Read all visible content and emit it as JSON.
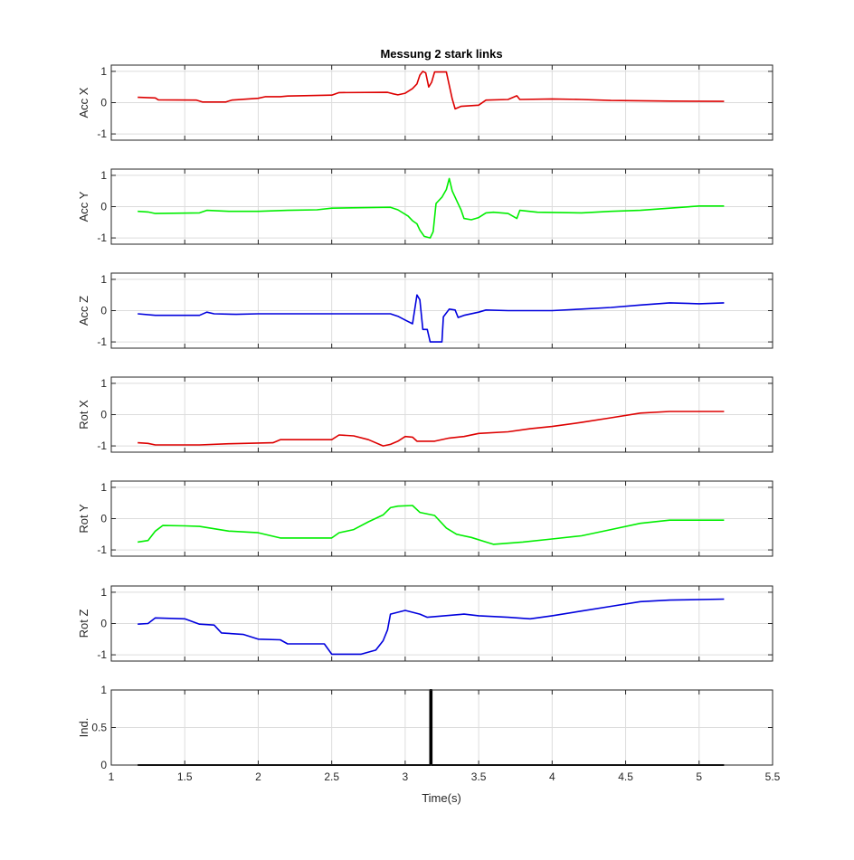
{
  "chart_data": {
    "type": "line",
    "title": "Messung 2 stark links",
    "xlabel": "Time(s)",
    "xlim": [
      1,
      5.5
    ],
    "xticks": [
      1,
      1.5,
      2,
      2.5,
      3,
      3.5,
      4,
      4.5,
      5,
      5.5
    ],
    "xtick_labels": [
      "1",
      "1.5",
      "2",
      "2.5",
      "3",
      "3.5",
      "4",
      "4.5",
      "5",
      "5.5"
    ],
    "grid": true,
    "panels": [
      {
        "ylabel": "Acc X",
        "ylim": [
          -1.2,
          1.2
        ],
        "yticks": [
          -1,
          0,
          1
        ],
        "ytick_labels": [
          "-1",
          "0",
          "1"
        ],
        "color": "#dd0000",
        "points": [
          [
            1.18,
            0.17
          ],
          [
            1.3,
            0.15
          ],
          [
            1.32,
            0.09
          ],
          [
            1.58,
            0.08
          ],
          [
            1.62,
            0.02
          ],
          [
            1.78,
            0.02
          ],
          [
            1.82,
            0.08
          ],
          [
            2.0,
            0.14
          ],
          [
            2.05,
            0.19
          ],
          [
            2.15,
            0.19
          ],
          [
            2.2,
            0.21
          ],
          [
            2.5,
            0.24
          ],
          [
            2.55,
            0.32
          ],
          [
            2.88,
            0.33
          ],
          [
            2.92,
            0.28
          ],
          [
            2.95,
            0.25
          ],
          [
            3.0,
            0.3
          ],
          [
            3.05,
            0.45
          ],
          [
            3.08,
            0.6
          ],
          [
            3.1,
            0.88
          ],
          [
            3.12,
            1.0
          ],
          [
            3.14,
            0.95
          ],
          [
            3.16,
            0.5
          ],
          [
            3.18,
            0.65
          ],
          [
            3.2,
            0.98
          ],
          [
            3.28,
            0.98
          ],
          [
            3.32,
            0.12
          ],
          [
            3.34,
            -0.2
          ],
          [
            3.38,
            -0.12
          ],
          [
            3.5,
            -0.08
          ],
          [
            3.55,
            0.08
          ],
          [
            3.7,
            0.1
          ],
          [
            3.76,
            0.22
          ],
          [
            3.78,
            0.1
          ],
          [
            4.0,
            0.12
          ],
          [
            4.2,
            0.1
          ],
          [
            4.4,
            0.07
          ],
          [
            4.6,
            0.06
          ],
          [
            4.8,
            0.05
          ],
          [
            5.17,
            0.04
          ]
        ]
      },
      {
        "ylabel": "Acc Y",
        "ylim": [
          -1.2,
          1.2
        ],
        "yticks": [
          -1,
          0,
          1
        ],
        "ytick_labels": [
          "-1",
          "0",
          "1"
        ],
        "color": "#00ee00",
        "points": [
          [
            1.18,
            -0.15
          ],
          [
            1.25,
            -0.17
          ],
          [
            1.3,
            -0.22
          ],
          [
            1.6,
            -0.2
          ],
          [
            1.65,
            -0.12
          ],
          [
            1.8,
            -0.15
          ],
          [
            2.0,
            -0.15
          ],
          [
            2.2,
            -0.12
          ],
          [
            2.4,
            -0.1
          ],
          [
            2.5,
            -0.05
          ],
          [
            2.9,
            -0.02
          ],
          [
            2.95,
            -0.1
          ],
          [
            3.02,
            -0.3
          ],
          [
            3.05,
            -0.45
          ],
          [
            3.08,
            -0.55
          ],
          [
            3.1,
            -0.75
          ],
          [
            3.13,
            -0.95
          ],
          [
            3.17,
            -1.0
          ],
          [
            3.19,
            -0.8
          ],
          [
            3.21,
            0.1
          ],
          [
            3.25,
            0.3
          ],
          [
            3.28,
            0.55
          ],
          [
            3.3,
            0.9
          ],
          [
            3.32,
            0.5
          ],
          [
            3.35,
            0.2
          ],
          [
            3.38,
            -0.1
          ],
          [
            3.4,
            -0.38
          ],
          [
            3.45,
            -0.42
          ],
          [
            3.5,
            -0.35
          ],
          [
            3.55,
            -0.2
          ],
          [
            3.6,
            -0.18
          ],
          [
            3.7,
            -0.22
          ],
          [
            3.76,
            -0.38
          ],
          [
            3.78,
            -0.12
          ],
          [
            3.9,
            -0.18
          ],
          [
            4.2,
            -0.2
          ],
          [
            4.4,
            -0.15
          ],
          [
            4.6,
            -0.12
          ],
          [
            4.8,
            -0.05
          ],
          [
            5.0,
            0.02
          ],
          [
            5.17,
            0.02
          ]
        ]
      },
      {
        "ylabel": "Acc Z",
        "ylim": [
          -1.2,
          1.2
        ],
        "yticks": [
          -1,
          0,
          1
        ],
        "ytick_labels": [
          "-1",
          "0",
          "1"
        ],
        "color": "#0000dd",
        "points": [
          [
            1.18,
            -0.1
          ],
          [
            1.3,
            -0.15
          ],
          [
            1.6,
            -0.15
          ],
          [
            1.65,
            -0.05
          ],
          [
            1.7,
            -0.1
          ],
          [
            1.85,
            -0.12
          ],
          [
            2.0,
            -0.1
          ],
          [
            2.2,
            -0.1
          ],
          [
            2.5,
            -0.1
          ],
          [
            2.9,
            -0.1
          ],
          [
            2.95,
            -0.18
          ],
          [
            3.0,
            -0.3
          ],
          [
            3.05,
            -0.42
          ],
          [
            3.08,
            0.5
          ],
          [
            3.1,
            0.35
          ],
          [
            3.12,
            -0.6
          ],
          [
            3.15,
            -0.6
          ],
          [
            3.17,
            -1.0
          ],
          [
            3.25,
            -1.0
          ],
          [
            3.26,
            -0.2
          ],
          [
            3.3,
            0.05
          ],
          [
            3.34,
            0.02
          ],
          [
            3.36,
            -0.22
          ],
          [
            3.4,
            -0.15
          ],
          [
            3.5,
            -0.05
          ],
          [
            3.55,
            0.02
          ],
          [
            3.7,
            0.0
          ],
          [
            4.0,
            0.0
          ],
          [
            4.2,
            0.05
          ],
          [
            4.4,
            0.1
          ],
          [
            4.6,
            0.18
          ],
          [
            4.8,
            0.25
          ],
          [
            5.0,
            0.22
          ],
          [
            5.17,
            0.25
          ]
        ]
      },
      {
        "ylabel": "Rot X",
        "ylim": [
          -1.2,
          1.2
        ],
        "yticks": [
          -1,
          0,
          1
        ],
        "ytick_labels": [
          "-1",
          "0",
          "1"
        ],
        "color": "#dd0000",
        "points": [
          [
            1.18,
            -0.9
          ],
          [
            1.25,
            -0.92
          ],
          [
            1.3,
            -0.97
          ],
          [
            1.6,
            -0.97
          ],
          [
            1.8,
            -0.93
          ],
          [
            2.1,
            -0.9
          ],
          [
            2.15,
            -0.8
          ],
          [
            2.5,
            -0.8
          ],
          [
            2.55,
            -0.65
          ],
          [
            2.65,
            -0.68
          ],
          [
            2.75,
            -0.8
          ],
          [
            2.85,
            -1.0
          ],
          [
            2.9,
            -0.95
          ],
          [
            2.95,
            -0.85
          ],
          [
            3.0,
            -0.7
          ],
          [
            3.05,
            -0.72
          ],
          [
            3.08,
            -0.85
          ],
          [
            3.2,
            -0.85
          ],
          [
            3.3,
            -0.75
          ],
          [
            3.4,
            -0.7
          ],
          [
            3.5,
            -0.6
          ],
          [
            3.7,
            -0.55
          ],
          [
            3.85,
            -0.45
          ],
          [
            4.0,
            -0.38
          ],
          [
            4.2,
            -0.25
          ],
          [
            4.4,
            -0.1
          ],
          [
            4.6,
            0.05
          ],
          [
            4.8,
            0.1
          ],
          [
            5.17,
            0.1
          ]
        ]
      },
      {
        "ylabel": "Rot Y",
        "ylim": [
          -1.2,
          1.2
        ],
        "yticks": [
          -1,
          0,
          1
        ],
        "ytick_labels": [
          "-1",
          "0",
          "1"
        ],
        "color": "#00ee00",
        "points": [
          [
            1.18,
            -0.75
          ],
          [
            1.25,
            -0.7
          ],
          [
            1.3,
            -0.4
          ],
          [
            1.35,
            -0.22
          ],
          [
            1.5,
            -0.23
          ],
          [
            1.6,
            -0.25
          ],
          [
            1.8,
            -0.4
          ],
          [
            2.0,
            -0.45
          ],
          [
            2.15,
            -0.62
          ],
          [
            2.5,
            -0.62
          ],
          [
            2.55,
            -0.45
          ],
          [
            2.65,
            -0.35
          ],
          [
            2.75,
            -0.1
          ],
          [
            2.85,
            0.12
          ],
          [
            2.9,
            0.35
          ],
          [
            2.95,
            0.4
          ],
          [
            3.05,
            0.42
          ],
          [
            3.1,
            0.2
          ],
          [
            3.2,
            0.1
          ],
          [
            3.28,
            -0.3
          ],
          [
            3.35,
            -0.5
          ],
          [
            3.45,
            -0.6
          ],
          [
            3.55,
            -0.75
          ],
          [
            3.6,
            -0.82
          ],
          [
            3.8,
            -0.75
          ],
          [
            4.0,
            -0.65
          ],
          [
            4.2,
            -0.55
          ],
          [
            4.4,
            -0.35
          ],
          [
            4.6,
            -0.15
          ],
          [
            4.8,
            -0.05
          ],
          [
            5.17,
            -0.05
          ]
        ]
      },
      {
        "ylabel": "Rot Z",
        "ylim": [
          -1.2,
          1.2
        ],
        "yticks": [
          -1,
          0,
          1
        ],
        "ytick_labels": [
          "-1",
          "0",
          "1"
        ],
        "color": "#0000dd",
        "points": [
          [
            1.18,
            -0.02
          ],
          [
            1.25,
            0.0
          ],
          [
            1.3,
            0.18
          ],
          [
            1.5,
            0.15
          ],
          [
            1.6,
            -0.02
          ],
          [
            1.7,
            -0.05
          ],
          [
            1.75,
            -0.3
          ],
          [
            1.9,
            -0.35
          ],
          [
            2.0,
            -0.5
          ],
          [
            2.15,
            -0.52
          ],
          [
            2.2,
            -0.65
          ],
          [
            2.45,
            -0.65
          ],
          [
            2.5,
            -0.98
          ],
          [
            2.7,
            -0.98
          ],
          [
            2.8,
            -0.85
          ],
          [
            2.85,
            -0.55
          ],
          [
            2.88,
            -0.2
          ],
          [
            2.9,
            0.3
          ],
          [
            3.0,
            0.42
          ],
          [
            3.1,
            0.3
          ],
          [
            3.15,
            0.2
          ],
          [
            3.4,
            0.3
          ],
          [
            3.5,
            0.25
          ],
          [
            3.7,
            0.2
          ],
          [
            3.85,
            0.15
          ],
          [
            4.0,
            0.25
          ],
          [
            4.2,
            0.4
          ],
          [
            4.4,
            0.55
          ],
          [
            4.6,
            0.7
          ],
          [
            4.8,
            0.75
          ],
          [
            5.17,
            0.78
          ]
        ]
      },
      {
        "ylabel": "Ind.",
        "ylim": [
          0,
          1
        ],
        "yticks": [
          0,
          0.5,
          1
        ],
        "ytick_labels": [
          "0",
          "0.5",
          "1"
        ],
        "color": "#000000",
        "points": [
          [
            1.18,
            0.0
          ],
          [
            3.17,
            0.0
          ],
          [
            3.17,
            1.0
          ],
          [
            3.18,
            1.0
          ],
          [
            3.18,
            0.0
          ],
          [
            5.17,
            0.0
          ]
        ]
      }
    ]
  }
}
